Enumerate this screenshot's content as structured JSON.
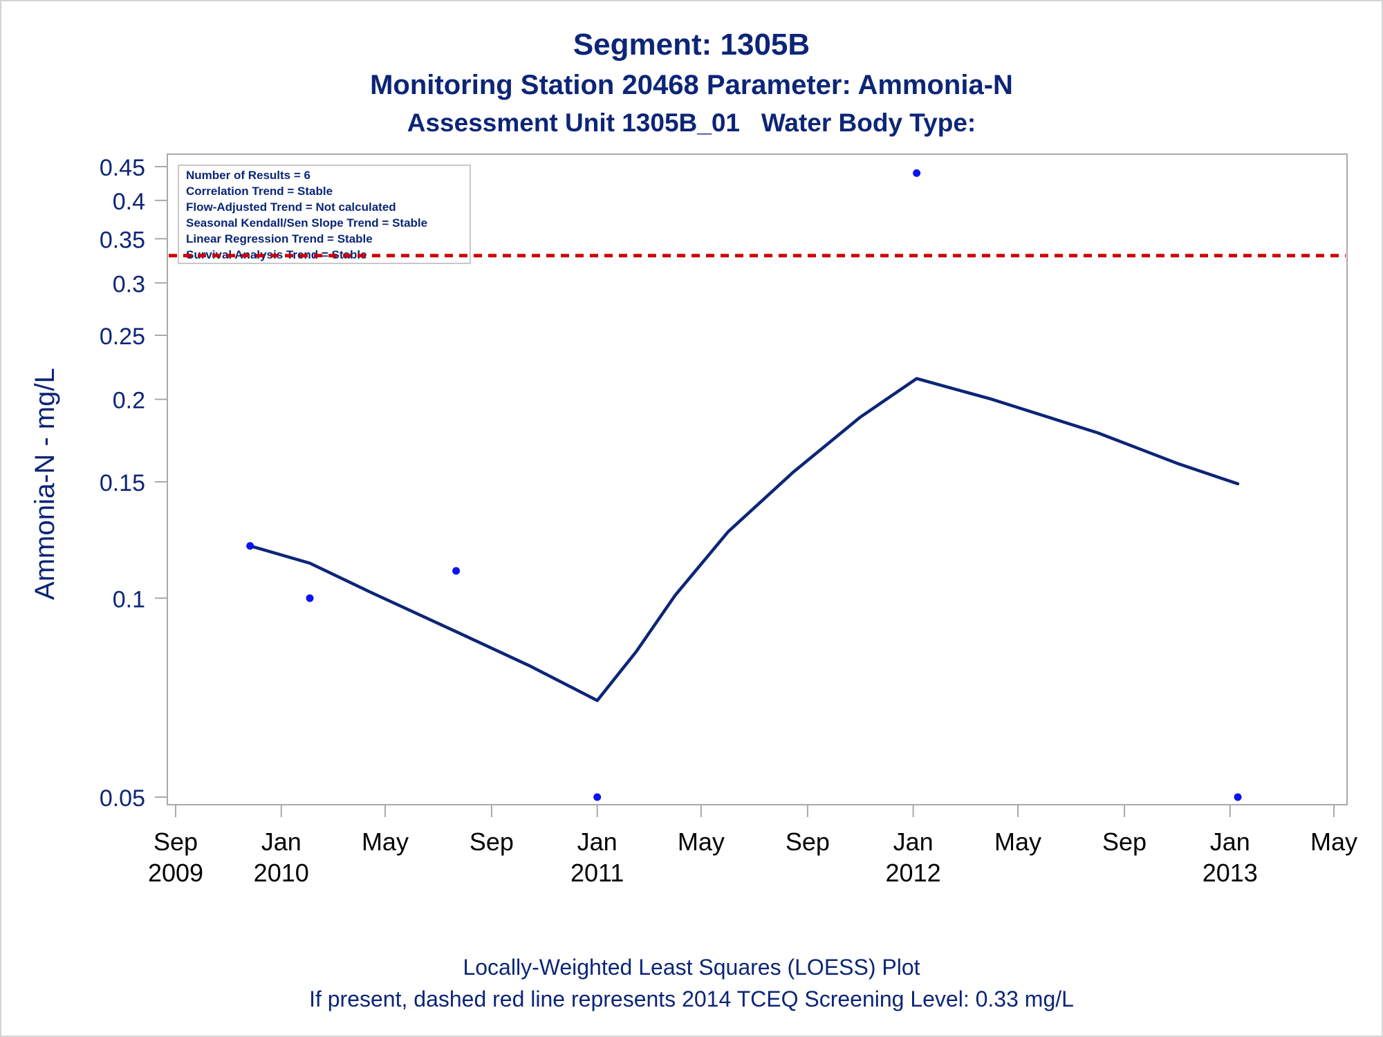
{
  "title": "Segment: 1305B",
  "subtitle": "Monitoring Station 20468 Parameter: Ammonia-N",
  "subtitle2": "Assessment Unit 1305B_01   Water Body Type:",
  "footnote1": "Locally-Weighted Least Squares (LOESS) Plot",
  "footnote2": "If present, dashed red line represents 2014 TCEQ Screening Level: 0.33 mg/L",
  "colors": {
    "text": "#0c2577",
    "loess_line": "#0c2577",
    "points": "#0a14f0",
    "reference_line": "#cc0000",
    "axis": "#a9a9a9",
    "tick_text": "#000000"
  },
  "chart_data": {
    "type": "scatter",
    "ylabel": "Ammonia-N - mg/L",
    "xlabel": "",
    "yscale": "log",
    "ylim": [
      0.05,
      0.45
    ],
    "xlim": [
      "2009-09-01",
      "2013-05-01"
    ],
    "yticks": [
      0.05,
      0.1,
      0.15,
      0.2,
      0.25,
      0.3,
      0.35,
      0.4,
      0.45
    ],
    "ytick_labels": [
      "0.05",
      "0.1",
      "0.15",
      "0.2",
      "0.25",
      "0.3",
      "0.35",
      "0.4",
      "0.45"
    ],
    "xticks": [
      {
        "date": "2009-09-01",
        "label": "Sep",
        "year": "2009"
      },
      {
        "date": "2010-01-01",
        "label": "Jan",
        "year": "2010"
      },
      {
        "date": "2010-05-01",
        "label": "May",
        "year": ""
      },
      {
        "date": "2010-09-01",
        "label": "Sep",
        "year": ""
      },
      {
        "date": "2011-01-01",
        "label": "Jan",
        "year": "2011"
      },
      {
        "date": "2011-05-01",
        "label": "May",
        "year": ""
      },
      {
        "date": "2011-09-01",
        "label": "Sep",
        "year": ""
      },
      {
        "date": "2012-01-01",
        "label": "Jan",
        "year": "2012"
      },
      {
        "date": "2012-05-01",
        "label": "May",
        "year": ""
      },
      {
        "date": "2012-09-01",
        "label": "Sep",
        "year": ""
      },
      {
        "date": "2013-01-01",
        "label": "Jan",
        "year": "2013"
      },
      {
        "date": "2013-05-01",
        "label": "May",
        "year": ""
      }
    ],
    "points": [
      {
        "x": "2009-11-26",
        "y": 0.12
      },
      {
        "x": "2010-02-03",
        "y": 0.1
      },
      {
        "x": "2010-07-22",
        "y": 0.11
      },
      {
        "x": "2011-01-01",
        "y": 0.05
      },
      {
        "x": "2012-01-05",
        "y": 0.44
      },
      {
        "x": "2013-01-10",
        "y": 0.05
      }
    ],
    "loess": [
      {
        "x": "2009-11-26",
        "y": 0.12
      },
      {
        "x": "2010-02-03",
        "y": 0.113
      },
      {
        "x": "2010-04-15",
        "y": 0.102
      },
      {
        "x": "2010-07-22",
        "y": 0.089
      },
      {
        "x": "2010-10-15",
        "y": 0.079
      },
      {
        "x": "2011-01-01",
        "y": 0.07
      },
      {
        "x": "2011-02-15",
        "y": 0.083
      },
      {
        "x": "2011-04-01",
        "y": 0.101
      },
      {
        "x": "2011-06-01",
        "y": 0.126
      },
      {
        "x": "2011-08-15",
        "y": 0.155
      },
      {
        "x": "2011-11-01",
        "y": 0.188
      },
      {
        "x": "2012-01-05",
        "y": 0.215
      },
      {
        "x": "2012-04-01",
        "y": 0.2
      },
      {
        "x": "2012-08-01",
        "y": 0.178
      },
      {
        "x": "2012-11-01",
        "y": 0.16
      },
      {
        "x": "2013-01-10",
        "y": 0.149
      }
    ],
    "reference_line": {
      "y": 0.33
    },
    "inset_box": [
      "Number of Results = 6",
      "Correlation Trend = Stable",
      "Flow-Adjusted Trend = Not calculated",
      "Seasonal Kendall/Sen Slope Trend = Stable",
      "Linear Regression Trend = Stable",
      "Survival Analysis Trend = Stable"
    ]
  }
}
